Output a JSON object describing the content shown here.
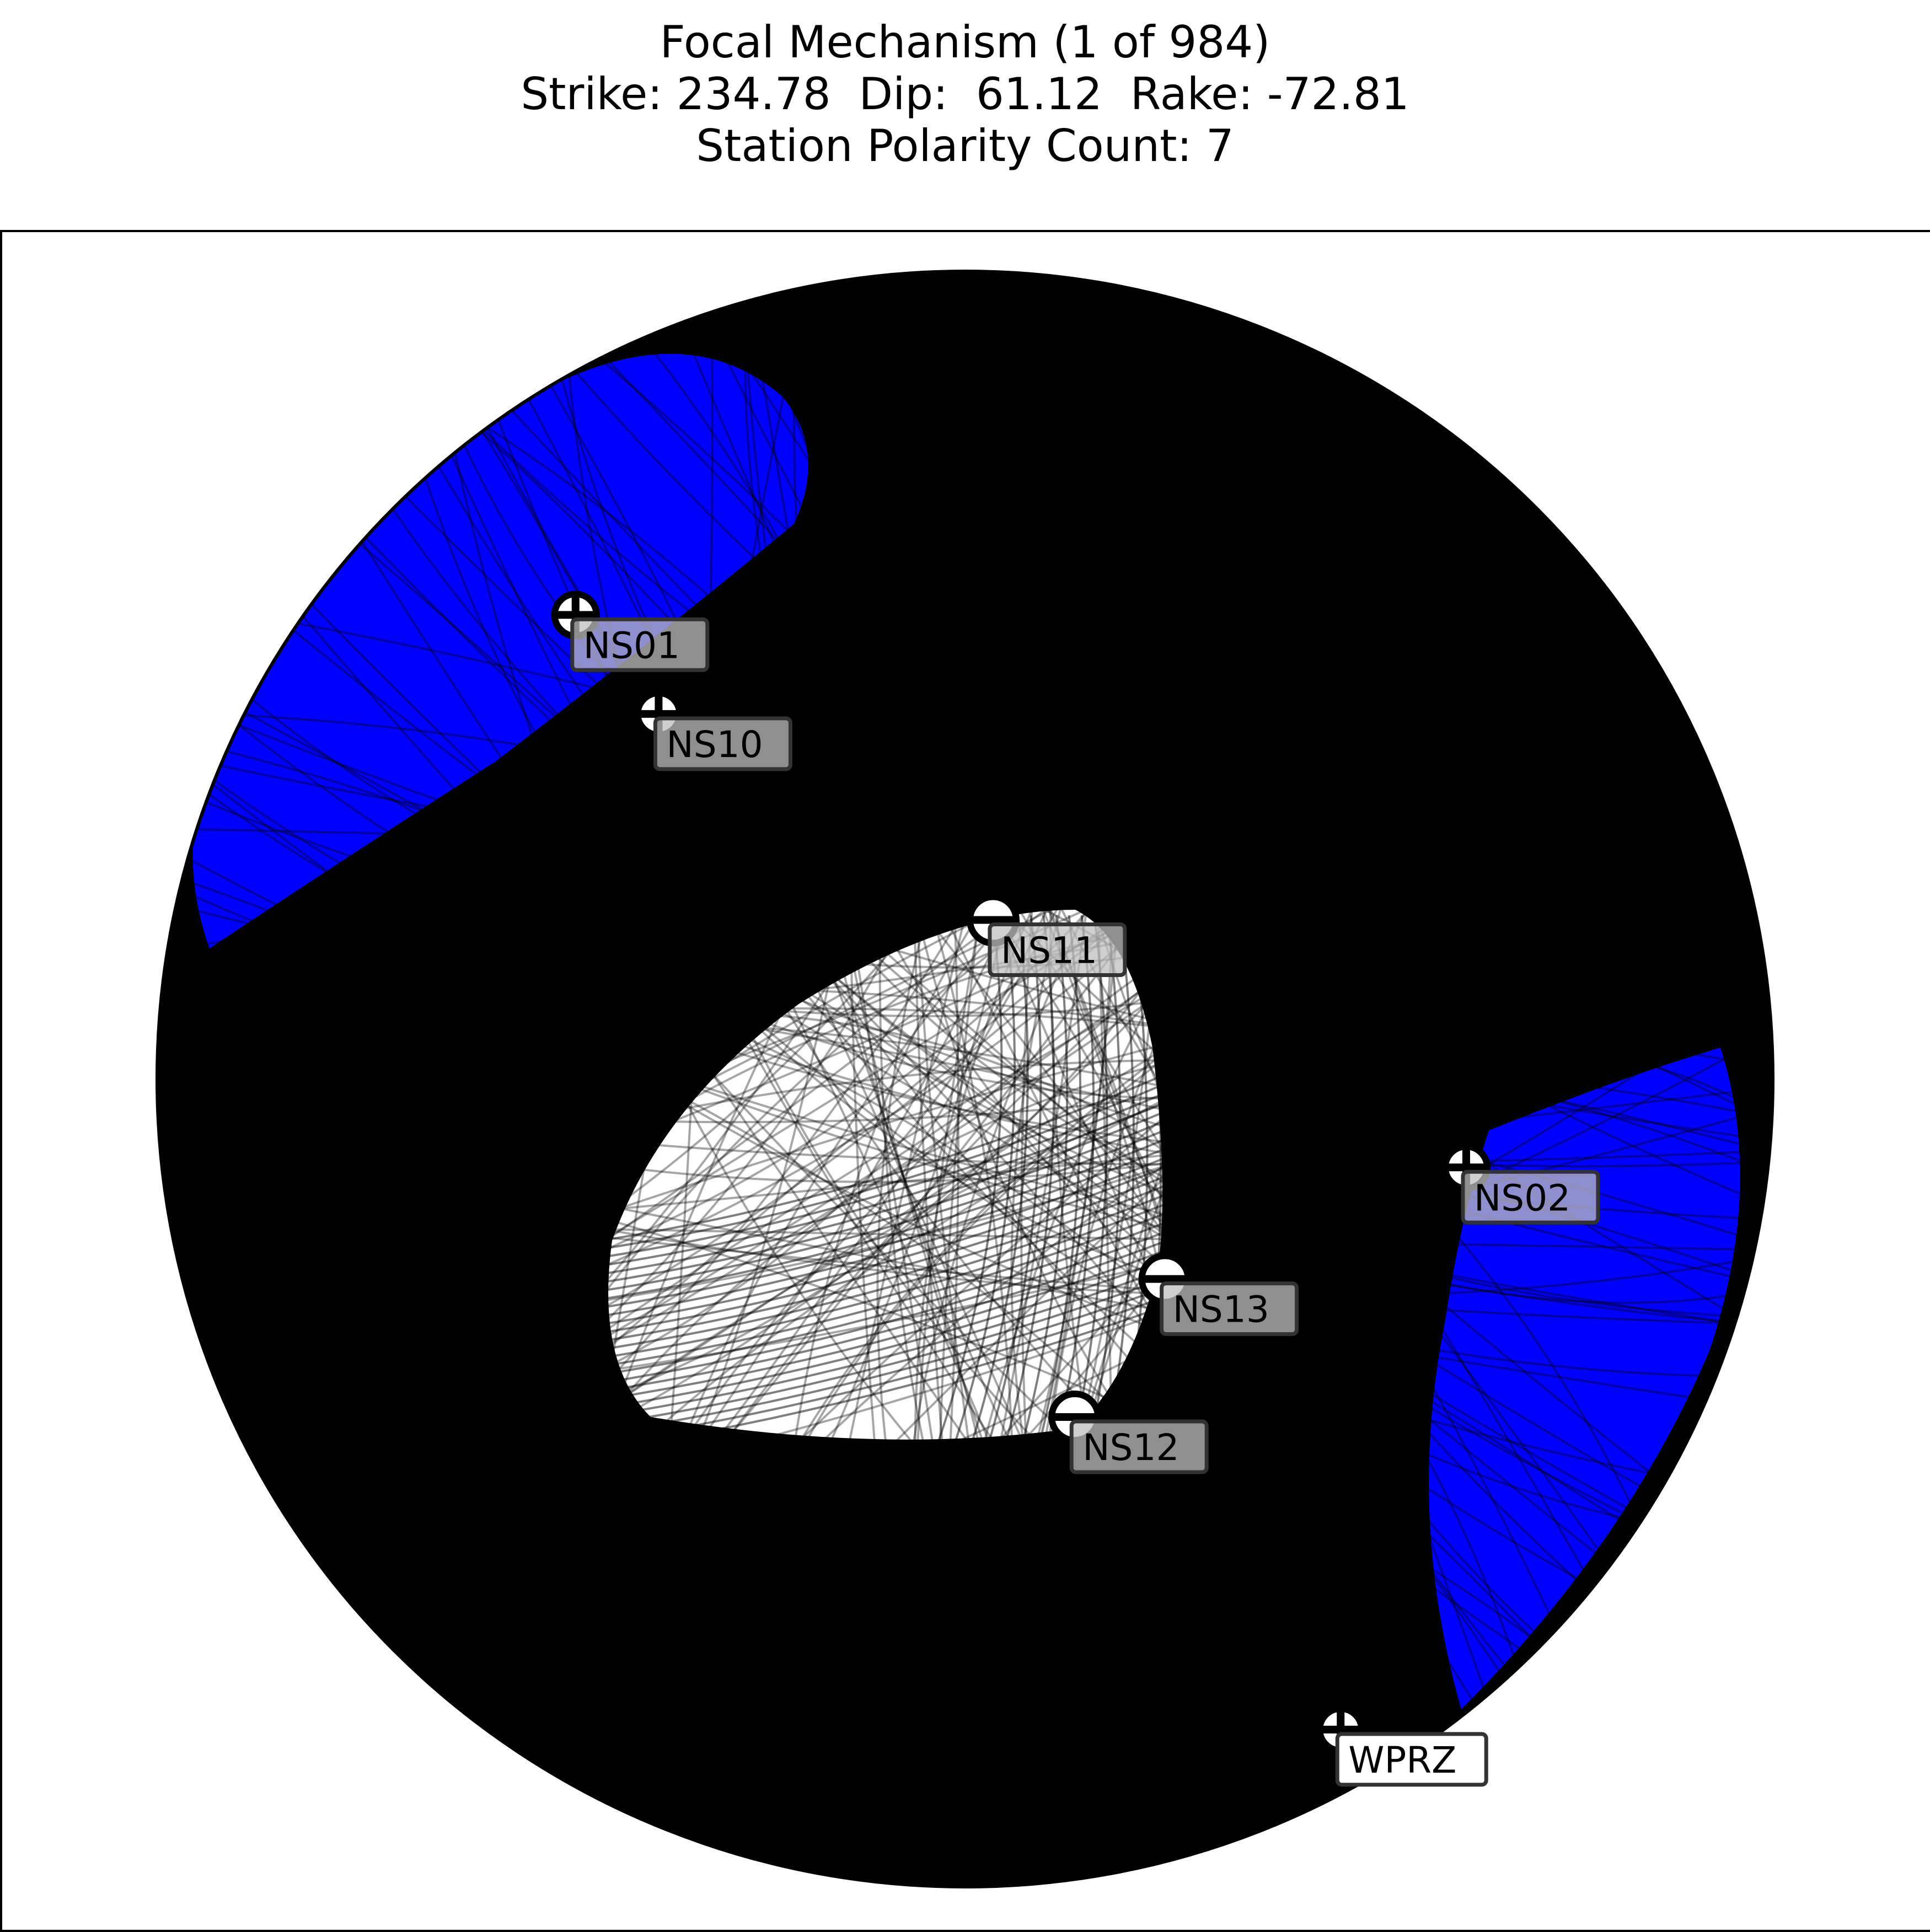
{
  "chart_data": {
    "type": "scatter",
    "title": "Focal Mechanism (1 of 984)",
    "subtitle": "Strike: 234.78  Dip:  61.12  Rake: -72.81",
    "subtitle2": "Station Polarity Count: 7",
    "mechanism": {
      "index": 1,
      "total": 984,
      "strike": 234.78,
      "dip": 61.12,
      "rake": -72.81,
      "station_polarity_count": 7
    },
    "colors": {
      "compressional": "#0000ff",
      "dilatational": "#ffffff",
      "nodal_lines": "#000000",
      "station_label_bg": "#bfbfbf",
      "station_label_bg_plain": "#ffffff"
    },
    "stations": [
      {
        "name": "NS01",
        "polarity": "+",
        "azimuth": 320,
        "plunge_fraction": 0.75
      },
      {
        "name": "NS10",
        "polarity": "+",
        "azimuth": 320,
        "plunge_fraction": 0.59
      },
      {
        "name": "NS11",
        "polarity": "-",
        "azimuth": 10,
        "plunge_fraction": 0.2
      },
      {
        "name": "NS02",
        "polarity": "+",
        "azimuth": 100,
        "plunge_fraction": 0.63
      },
      {
        "name": "NS13",
        "polarity": "-",
        "azimuth": 135,
        "plunge_fraction": 0.35
      },
      {
        "name": "NS12",
        "polarity": "-",
        "azimuth": 162,
        "plunge_fraction": 0.44
      },
      {
        "name": "WPRZ",
        "polarity": "+",
        "azimuth": 150,
        "plunge_fraction": 0.93
      }
    ]
  }
}
